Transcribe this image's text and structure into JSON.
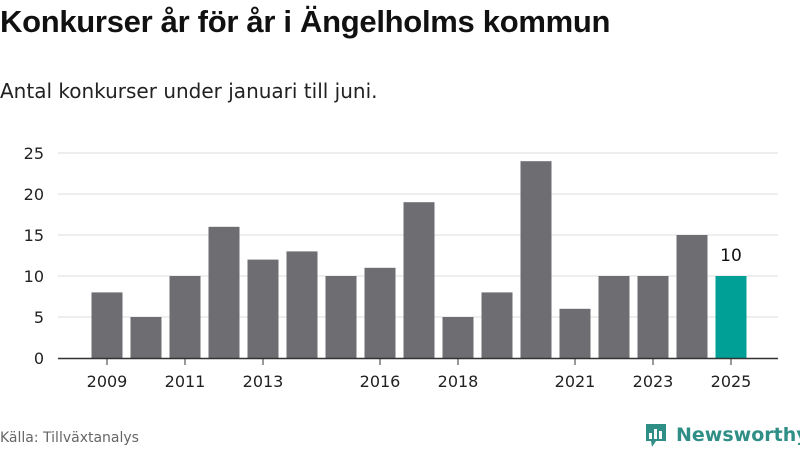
{
  "title": "Konkurser år för år i Ängelholms kommun",
  "subtitle": "Antal konkurser under januari till juni.",
  "source": "Källa: Tillväxtanalys",
  "brand": {
    "name": "Newsworthy"
  },
  "colors": {
    "bar": "#6d6d72",
    "highlight": "#00a096",
    "grid": "#dddddd",
    "axis": "#333333",
    "brand": "#2f8f87"
  },
  "chart_data": {
    "type": "bar",
    "x": [
      2009,
      2010,
      2011,
      2012,
      2013,
      2014,
      2015,
      2016,
      2017,
      2018,
      2019,
      2020,
      2021,
      2022,
      2023,
      2024,
      2025
    ],
    "values": [
      8,
      5,
      10,
      16,
      12,
      13,
      10,
      11,
      19,
      5,
      8,
      24,
      6,
      10,
      10,
      15,
      10
    ],
    "x_tick_labels": [
      "2009",
      "2011",
      "2013",
      "2016",
      "2018",
      "2021",
      "2023",
      "2025"
    ],
    "y_ticks": [
      0,
      5,
      10,
      15,
      20,
      25
    ],
    "ylim": [
      0,
      25
    ],
    "highlight": {
      "x": 2025,
      "label": "10"
    },
    "grid": true,
    "xlabel": "",
    "ylabel": ""
  }
}
